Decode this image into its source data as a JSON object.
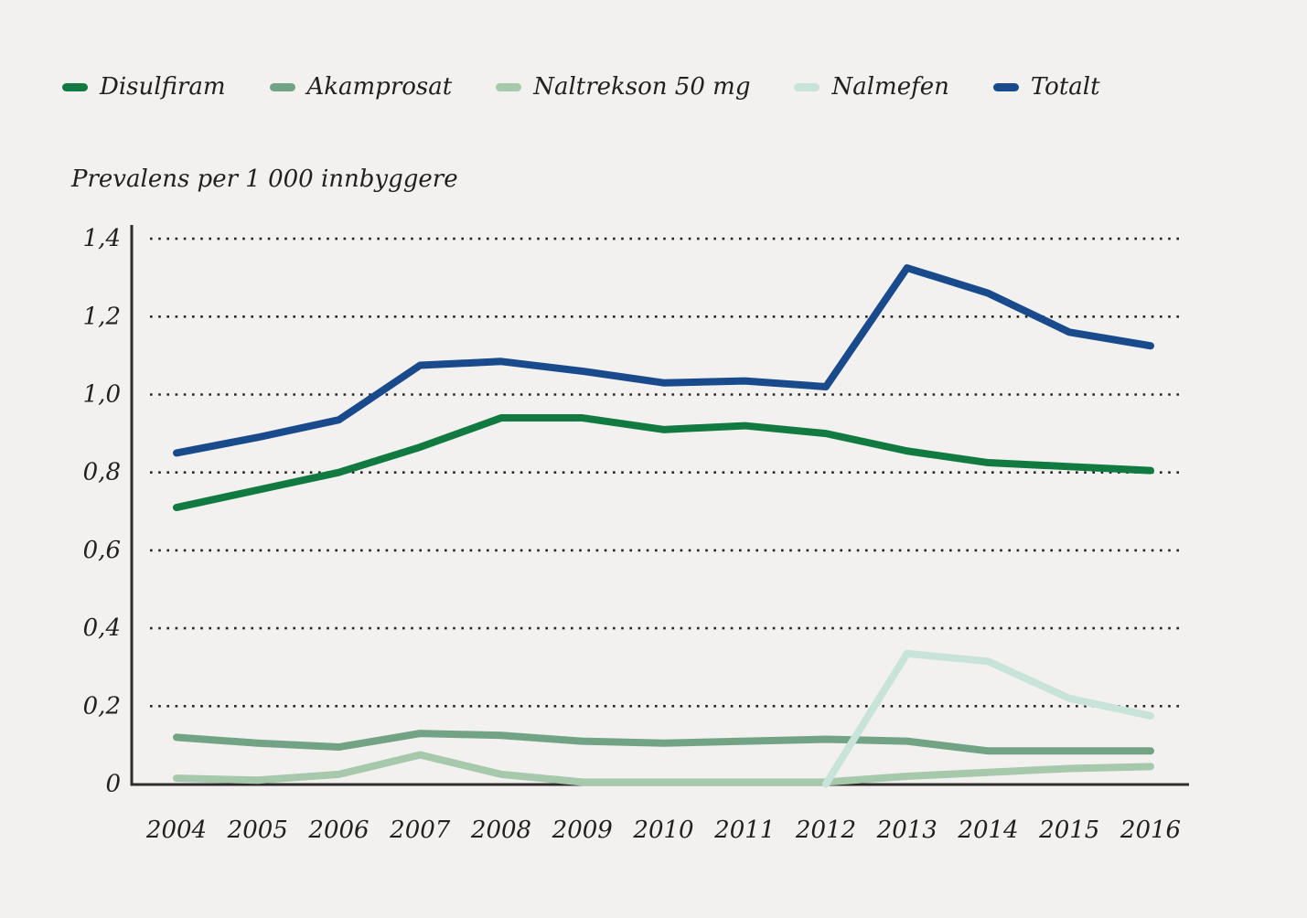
{
  "page": {
    "background_color": "#f2f1ef",
    "text_color": "#21201e",
    "axis_color": "#2e2d2b",
    "grid_dot_color": "#262626"
  },
  "legend": {
    "position": "top",
    "swatch_shape": "rounded-dash"
  },
  "chart_data": {
    "type": "line",
    "title": "Prevalens per 1 000 innbyggere",
    "xlabel": "",
    "ylabel": "Prevalens per 1 000 innbyggere",
    "x": [
      2004,
      2005,
      2006,
      2007,
      2008,
      2009,
      2010,
      2011,
      2012,
      2013,
      2014,
      2015,
      2016
    ],
    "ylim": [
      0,
      1.4
    ],
    "y_ticks": [
      0,
      0.2,
      0.4,
      0.6,
      0.8,
      1.0,
      1.2,
      1.4
    ],
    "y_tick_labels": [
      "0",
      "0,2",
      "0,4",
      "0,6",
      "0,8",
      "1,0",
      "1,2",
      "1,4"
    ],
    "grid": "horizontal-dotted",
    "legend_position": "top-left",
    "series": [
      {
        "name": "Disulfiram",
        "color": "#107a41",
        "values": [
          0.71,
          0.755,
          0.8,
          0.865,
          0.94,
          0.94,
          0.91,
          0.92,
          0.9,
          0.855,
          0.825,
          0.815,
          0.805
        ]
      },
      {
        "name": "Akamprosat",
        "color": "#72a384",
        "values": [
          0.12,
          0.105,
          0.095,
          0.13,
          0.125,
          0.11,
          0.105,
          0.11,
          0.115,
          0.11,
          0.085,
          0.085,
          0.085
        ]
      },
      {
        "name": "Naltrekson 50 mg",
        "color": "#a6c8ab",
        "values": [
          0.015,
          0.01,
          0.025,
          0.075,
          0.025,
          0.005,
          0.005,
          0.005,
          0.005,
          0.02,
          0.03,
          0.04,
          0.045
        ]
      },
      {
        "name": "Nalmefen",
        "color": "#c8e3da",
        "values": [
          null,
          null,
          null,
          null,
          null,
          null,
          null,
          null,
          0,
          0.335,
          0.315,
          0.22,
          0.175
        ]
      },
      {
        "name": "Totalt",
        "color": "#184a8c",
        "values": [
          0.85,
          0.89,
          0.935,
          1.075,
          1.085,
          1.06,
          1.03,
          1.035,
          1.02,
          1.325,
          1.26,
          1.16,
          1.125
        ]
      }
    ]
  }
}
